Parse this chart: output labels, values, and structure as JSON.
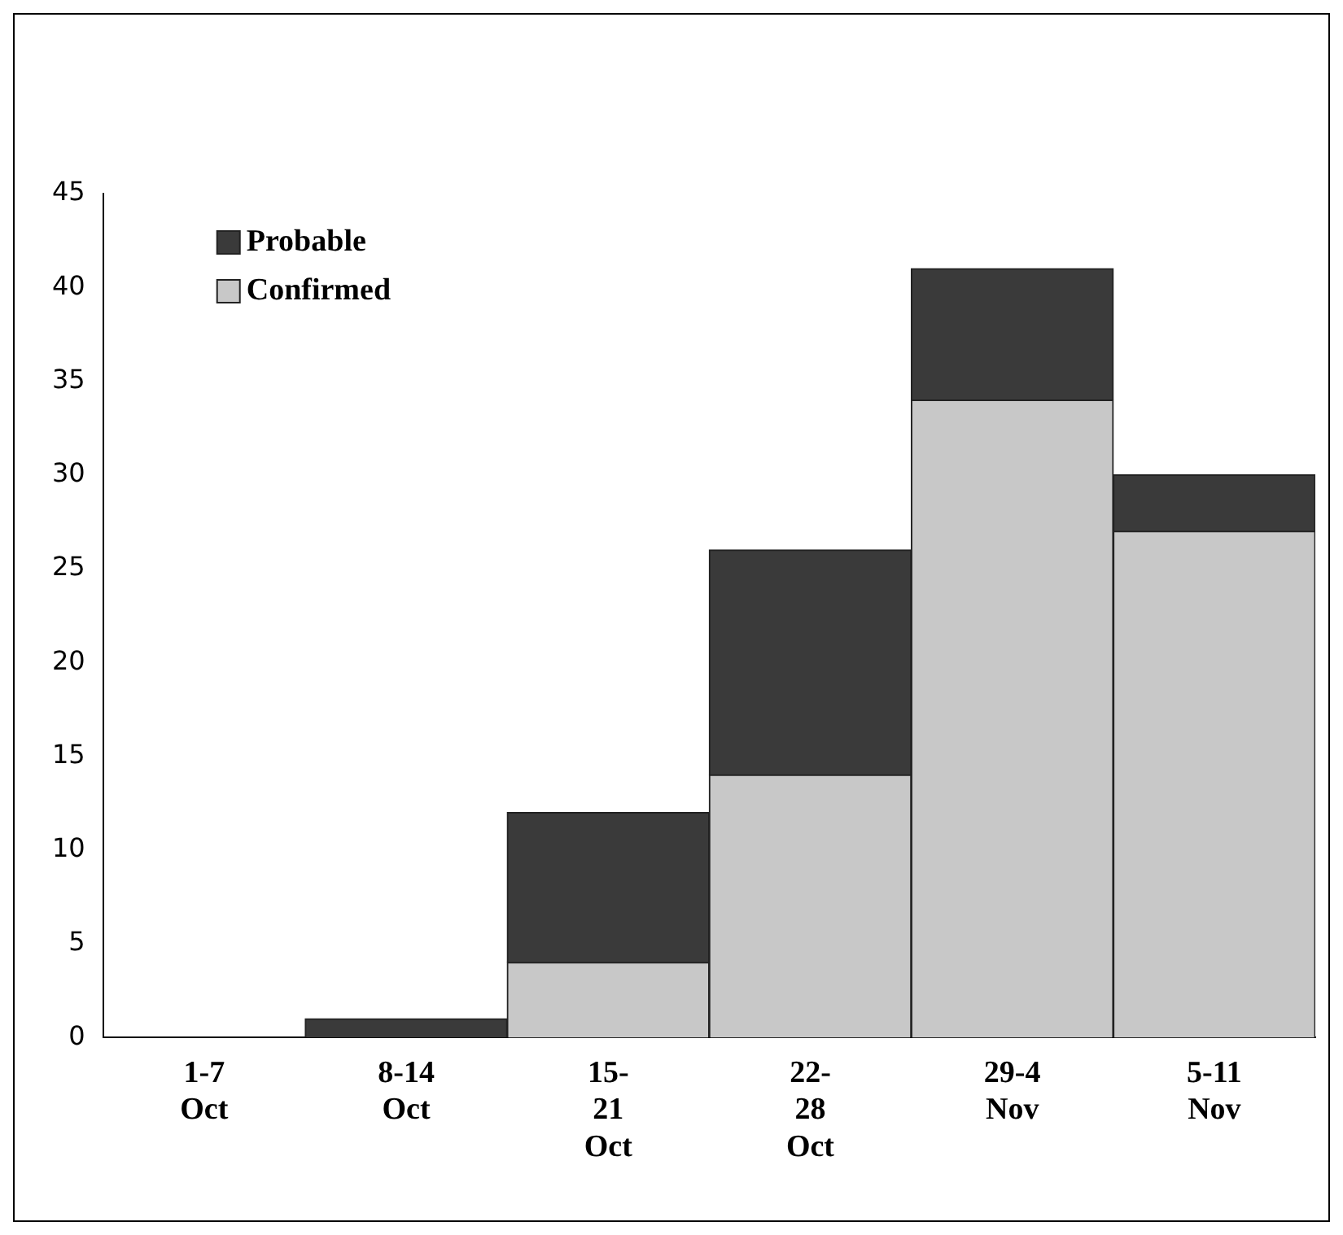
{
  "chart_data": {
    "type": "bar",
    "stacked": true,
    "categories": [
      "1-7 Oct",
      "8-14 Oct",
      "15- 21 Oct",
      "22- 28 Oct",
      "29-4 Nov",
      "5-11 Nov"
    ],
    "series": [
      {
        "name": "Confirmed",
        "color": "#c8c8c8",
        "values": [
          0,
          0,
          4,
          14,
          34,
          27
        ]
      },
      {
        "name": "Probable",
        "color": "#3a3a3a",
        "values": [
          0,
          1,
          8,
          12,
          7,
          3
        ]
      }
    ],
    "ylim": [
      0,
      45
    ],
    "yticks": [
      0,
      5,
      10,
      15,
      20,
      25,
      30,
      35,
      40,
      45
    ],
    "grid": false,
    "legend": "top left"
  }
}
